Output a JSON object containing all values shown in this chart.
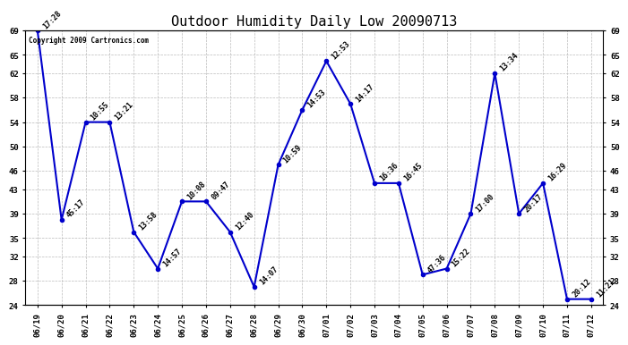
{
  "title": "Outdoor Humidity Daily Low 20090713",
  "copyright": "Copyright 2009 Cartronics.com",
  "background_color": "#ffffff",
  "line_color": "#0000cc",
  "grid_color": "#bbbbbb",
  "x_labels": [
    "06/19",
    "06/20",
    "06/21",
    "06/22",
    "06/23",
    "06/24",
    "06/25",
    "06/26",
    "06/27",
    "06/28",
    "06/29",
    "06/30",
    "07/01",
    "07/02",
    "07/03",
    "07/04",
    "07/05",
    "07/06",
    "07/07",
    "07/08",
    "07/09",
    "07/10",
    "07/11",
    "07/12"
  ],
  "y_values": [
    69,
    38,
    54,
    54,
    36,
    30,
    41,
    41,
    36,
    27,
    47,
    56,
    64,
    57,
    44,
    44,
    29,
    30,
    39,
    62,
    39,
    44,
    25,
    25
  ],
  "point_labels": [
    "17:28",
    "45:17",
    "10:55",
    "13:21",
    "13:58",
    "14:57",
    "10:08",
    "09:47",
    "12:40",
    "14:07",
    "10:59",
    "14:53",
    "12:53",
    "14:17",
    "16:36",
    "16:45",
    "47:36",
    "15:22",
    "17:00",
    "13:34",
    "20:17",
    "16:29",
    "20:12",
    "11:21"
  ],
  "ylim_min": 24,
  "ylim_max": 69,
  "yticks": [
    24,
    28,
    32,
    35,
    39,
    43,
    46,
    50,
    54,
    58,
    62,
    65,
    69
  ],
  "title_fontsize": 11,
  "label_fontsize": 6.5,
  "point_label_fontsize": 6,
  "marker_size": 3,
  "line_width": 1.5
}
